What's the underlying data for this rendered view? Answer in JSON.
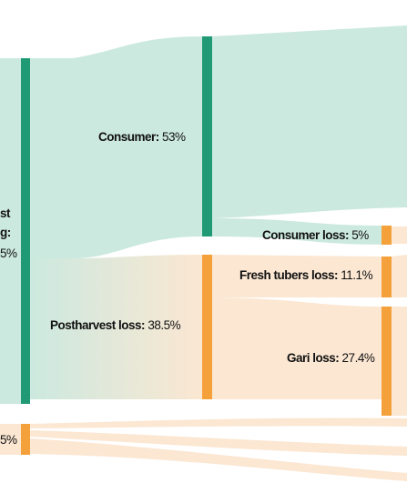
{
  "sankey": {
    "colors": {
      "node_green": "#1f9a74",
      "node_orange": "#f5a13b",
      "flow_green": "#cce9df",
      "flow_orange": "#fbe7d2"
    },
    "nodes": {
      "harvest_processing": {
        "label_line1": "st",
        "label_line2": "g:",
        "value_fragment": "5%"
      },
      "consumer": {
        "name": "Consumer:",
        "value": "53%"
      },
      "postharvest_loss": {
        "name": "Postharvest loss:",
        "value": "38.5%"
      },
      "consumer_loss": {
        "name": "Consumer loss:",
        "value": "5%"
      },
      "fresh_tubers_loss": {
        "name": "Fresh tubers loss:",
        "value": "11.1%"
      },
      "gari_loss": {
        "name": "Gari loss:",
        "value": "27.4%"
      },
      "lower_node": {
        "value_fragment": "5%"
      }
    }
  }
}
